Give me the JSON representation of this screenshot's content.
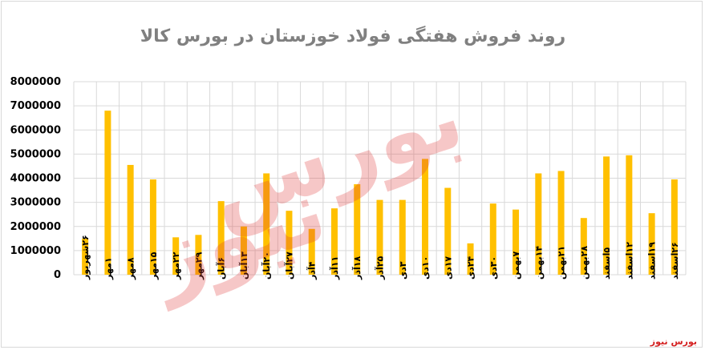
{
  "chart_data": {
    "type": "bar",
    "title": "روند فروش هفتگی فولاد خوزستان در بورس کالا",
    "xlabel": "",
    "ylabel": "",
    "ylim": [
      0,
      8000000
    ],
    "yticks": [
      "0",
      "1000000",
      "2000000",
      "3000000",
      "4000000",
      "5000000",
      "6000000",
      "7000000",
      "8000000"
    ],
    "grid": true,
    "legend": "none",
    "categories": [
      "۲۶شهریور",
      "۱مهر",
      "۸مهر",
      "۱۵مهر",
      "۲۲مهر",
      "۲۹مهر",
      "۶آبان",
      "۱۳آبان",
      "۲۰آبان",
      "۲۷آبان",
      "۴آذر",
      "۱۱آذر",
      "۱۸آذر",
      "۲۵آذر",
      "۳دی",
      "۱۰دی",
      "۱۷دی",
      "۲۴دی",
      "۳۰دی",
      "۷بهمن",
      "۱۴بهمن",
      "۲۱بهمن",
      "۲۸بهمن",
      "۵اسفند",
      "۱۲اسفند",
      "۱۹اسفند",
      "۲۶اسفند"
    ],
    "series": [
      {
        "values": [
          1500000,
          6800000,
          4550000,
          3950000,
          1550000,
          1650000,
          3050000,
          2000000,
          4200000,
          2650000,
          1900000,
          2750000,
          3750000,
          3100000,
          3100000,
          4800000,
          3600000,
          1300000,
          2950000,
          2700000,
          4200000,
          4300000,
          2350000,
          4900000,
          4950000,
          2550000,
          3950000
        ]
      }
    ],
    "bar_color": "#ffc000",
    "grid_color": "#d9d9d9"
  },
  "watermark": {
    "line1": "بورس",
    "line2": "نیوز"
  },
  "brand": "بورس نیوز"
}
